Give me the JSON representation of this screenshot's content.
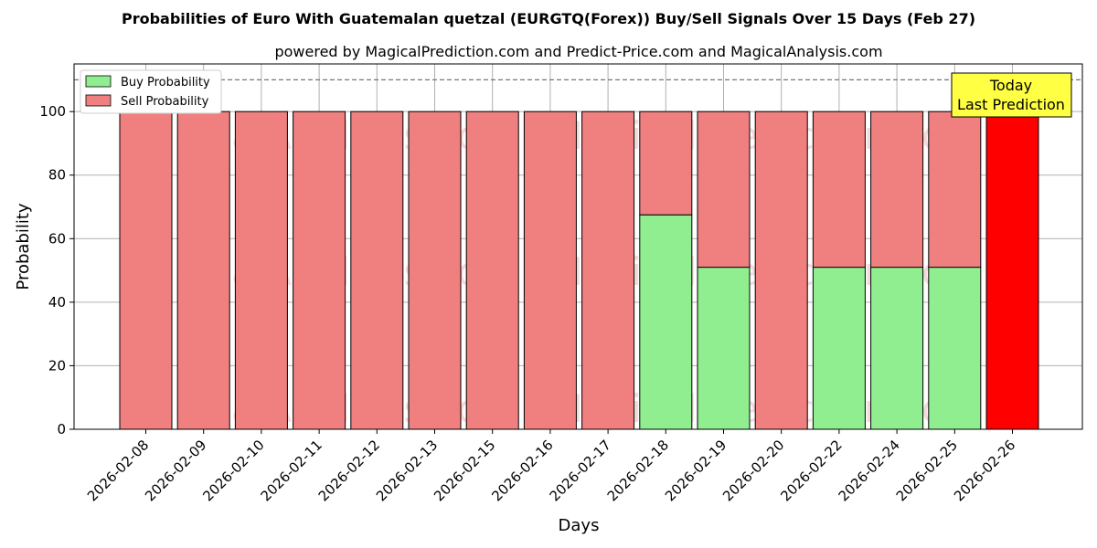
{
  "chart_data": {
    "type": "bar",
    "stacked": true,
    "title": "Probabilities of Euro With Guatemalan quetzal (EURGTQ(Forex)) Buy/Sell Signals Over 15 Days (Feb 27)",
    "subtitle": "powered by MagicalPrediction.com and Predict-Price.com and MagicalAnalysis.com",
    "xlabel": "Days",
    "ylabel": "Probability",
    "ylim": [
      0,
      115
    ],
    "yticks": [
      0,
      20,
      40,
      60,
      80,
      100
    ],
    "reference_line": 110,
    "grid": true,
    "legend_position": "top-left",
    "categories": [
      "2026-02-08",
      "2026-02-09",
      "2026-02-10",
      "2026-02-11",
      "2026-02-12",
      "2026-02-13",
      "2026-02-15",
      "2026-02-16",
      "2026-02-17",
      "2026-02-18",
      "2026-02-19",
      "2026-02-20",
      "2026-02-22",
      "2026-02-24",
      "2026-02-25",
      "2026-02-26"
    ],
    "series": [
      {
        "name": "Buy Probability",
        "color": "#90ee90",
        "values": [
          0,
          0,
          0,
          0,
          0,
          0,
          0,
          0,
          0,
          67.5,
          51,
          0,
          51,
          51,
          51,
          0
        ]
      },
      {
        "name": "Sell Probability",
        "color": "#f08080",
        "values": [
          100,
          100,
          100,
          100,
          100,
          100,
          100,
          100,
          100,
          32.5,
          49,
          100,
          49,
          49,
          49,
          100
        ]
      }
    ],
    "highlight": {
      "index": 15,
      "color": "#ff0000"
    },
    "annotation": {
      "line1": "Today",
      "line2": "Last Prediction",
      "color": "#ffff44"
    },
    "watermarks": [
      "MagicalAnalysis.com",
      "MagicalPrediction.com"
    ]
  }
}
